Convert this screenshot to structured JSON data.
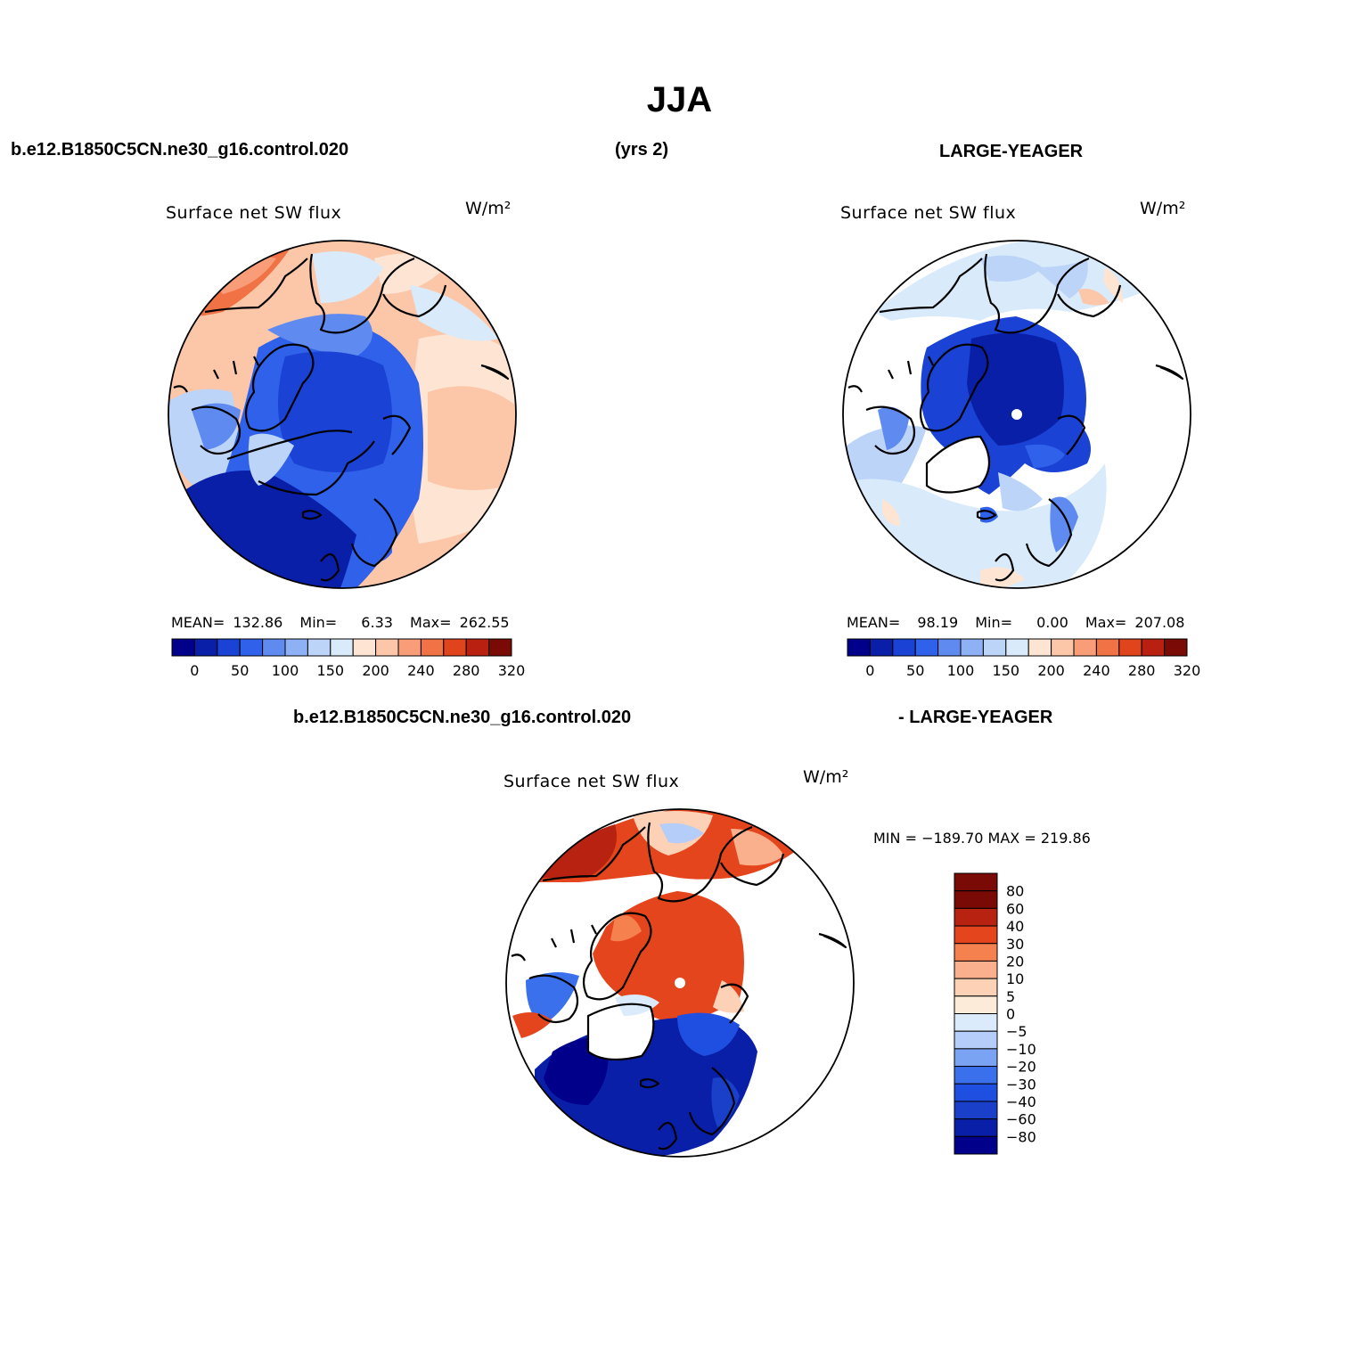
{
  "header": {
    "title": "JJA",
    "case_left": "b.e12.B1850C5CN.ne30_g16.control.020",
    "years": "(yrs 2)",
    "case_right": "LARGE-YEAGER",
    "diff_left": "b.e12.B1850C5CN.ne30_g16.control.020",
    "diff_right": "- LARGE-YEAGER"
  },
  "colors": {
    "abs_levels": [
      "#00008b",
      "#0a1fa8",
      "#1a42d4",
      "#2f61ea",
      "#5f8af0",
      "#8eb0f5",
      "#bdd4f9",
      "#d9ebfb",
      "#fde4d3",
      "#fcc6a8",
      "#f99c78",
      "#f07245",
      "#e0441c",
      "#b9200f",
      "#7a0a05"
    ],
    "diff_levels": [
      "#00008b",
      "#0a1fa8",
      "#1a3fc9",
      "#1f4fe0",
      "#3b70ec",
      "#7aa3f3",
      "#b4cdf9",
      "#dbebfb",
      "#fdebd9",
      "#fcd1b6",
      "#fab08c",
      "#f5814f",
      "#e4451d",
      "#b82210",
      "#7a0a05"
    ],
    "white_pole_marker": "#ffffff"
  },
  "chart_data": [
    {
      "type": "heatmap",
      "projection": "polar-stereographic-north",
      "title": "Surface net SW flux",
      "units": "W/m²",
      "stats": {
        "mean_label": "MEAN=",
        "mean": "132.86",
        "min_label": "Min=",
        "min": "6.33",
        "max_label": "Max=",
        "max": "262.55"
      },
      "colorbar": {
        "orientation": "horizontal",
        "tick_labels": [
          "0",
          "50",
          "100",
          "150",
          "200",
          "240",
          "280",
          "320"
        ],
        "n_boxes": 15
      }
    },
    {
      "type": "heatmap",
      "projection": "polar-stereographic-north",
      "title": "Surface net SW flux",
      "units": "W/m²",
      "stats": {
        "mean_label": "MEAN=",
        "mean": "98.19",
        "min_label": "Min=",
        "min": "0.00",
        "max_label": "Max=",
        "max": "207.08"
      },
      "colorbar": {
        "orientation": "horizontal",
        "tick_labels": [
          "0",
          "50",
          "100",
          "150",
          "200",
          "240",
          "280",
          "320"
        ],
        "n_boxes": 15
      }
    },
    {
      "type": "heatmap",
      "projection": "polar-stereographic-north",
      "title": "Surface net SW flux",
      "units": "W/m²",
      "minmax": "MIN = −189.70  MAX = 219.86",
      "colorbar": {
        "orientation": "vertical",
        "tick_labels": [
          "80",
          "60",
          "40",
          "30",
          "20",
          "10",
          "5",
          "0",
          "−5",
          "−10",
          "−20",
          "−30",
          "−40",
          "−60",
          "−80"
        ],
        "n_boxes": 16
      }
    }
  ]
}
